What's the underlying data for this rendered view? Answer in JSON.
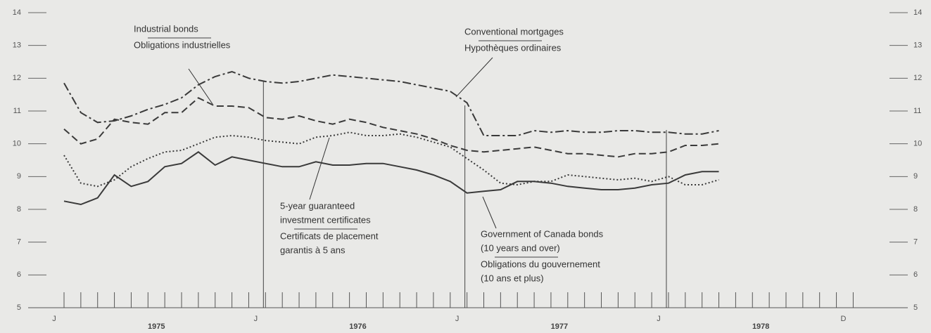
{
  "chart_data": {
    "type": "line",
    "categories": [
      "J",
      null,
      null,
      null,
      null,
      null,
      null,
      null,
      null,
      null,
      null,
      null,
      "J",
      null,
      null,
      null,
      null,
      null,
      null,
      null,
      null,
      null,
      null,
      null,
      "J",
      null,
      null,
      null,
      null,
      null,
      null,
      null,
      null,
      null,
      null,
      null,
      "J",
      null,
      null,
      null,
      null,
      null,
      null,
      null,
      null,
      null,
      null,
      "D"
    ],
    "year_labels": [
      "1975",
      "1976",
      "1977",
      "1978"
    ],
    "ylim": [
      5,
      14
    ],
    "yticks": [
      5,
      6,
      7,
      8,
      9,
      10,
      11,
      12,
      13,
      14
    ],
    "series": [
      {
        "color": "#3a3a3a",
        "dash": "dashdot",
        "values": [
          11.85,
          10.95,
          10.65,
          10.7,
          10.85,
          11.05,
          11.2,
          11.4,
          11.8,
          12.05,
          12.2,
          12.0,
          11.9,
          11.85,
          11.9,
          12.0,
          12.1,
          12.05,
          12.0,
          11.95,
          11.9,
          11.8,
          11.7,
          11.6,
          11.25,
          10.25,
          10.25,
          10.25,
          10.4,
          10.35,
          10.4,
          10.35,
          10.35,
          10.4,
          10.4,
          10.35,
          10.35,
          10.3,
          10.3,
          10.4,
          null,
          null,
          null,
          null,
          null,
          null,
          null,
          null
        ]
      },
      {
        "color": "#3a3a3a",
        "dash": "dashed",
        "values": [
          10.45,
          10.0,
          10.15,
          10.75,
          10.65,
          10.6,
          10.95,
          10.95,
          11.4,
          11.15,
          11.15,
          11.1,
          10.8,
          10.75,
          10.85,
          10.7,
          10.6,
          10.75,
          10.65,
          10.5,
          10.4,
          10.3,
          10.15,
          9.95,
          9.8,
          9.75,
          9.8,
          9.85,
          9.9,
          9.8,
          9.7,
          9.7,
          9.65,
          9.6,
          9.7,
          9.7,
          9.75,
          9.95,
          9.95,
          10.0,
          null,
          null,
          null,
          null,
          null,
          null,
          null,
          null
        ]
      },
      {
        "color": "#3a3a3a",
        "dash": "dotted",
        "values": [
          9.65,
          8.8,
          8.7,
          8.9,
          9.3,
          9.55,
          9.75,
          9.8,
          10.0,
          10.2,
          10.25,
          10.2,
          10.1,
          10.05,
          10.0,
          10.2,
          10.25,
          10.35,
          10.25,
          10.25,
          10.3,
          10.2,
          10.05,
          9.9,
          9.55,
          9.2,
          8.8,
          8.75,
          8.85,
          8.85,
          9.05,
          9.0,
          8.95,
          8.9,
          8.95,
          8.85,
          9.0,
          8.75,
          8.75,
          8.9,
          null,
          null,
          null,
          null,
          null,
          null,
          null,
          null
        ]
      },
      {
        "color": "#3a3a3a",
        "dash": "solid",
        "values": [
          8.25,
          8.15,
          8.35,
          9.05,
          8.7,
          8.85,
          9.3,
          9.4,
          9.75,
          9.35,
          9.6,
          9.5,
          9.4,
          9.3,
          9.3,
          9.45,
          9.35,
          9.35,
          9.4,
          9.4,
          9.3,
          9.2,
          9.05,
          8.85,
          8.5,
          8.55,
          8.6,
          8.85,
          8.85,
          8.8,
          8.7,
          8.65,
          8.6,
          8.6,
          8.65,
          8.75,
          8.8,
          9.05,
          9.15,
          9.15,
          null,
          null,
          null,
          null,
          null,
          null,
          null,
          null
        ]
      }
    ],
    "annotations": [
      {
        "lines": [
          "Conventional mortgages",
          "Hypothèques ordinaires"
        ]
      },
      {
        "lines": [
          "Industrial bonds",
          "Obligations industrielles"
        ]
      },
      {
        "lines": [
          "5-year guaranteed",
          "investment certificates",
          "Certificats de placement",
          "garantis à 5 ans"
        ]
      },
      {
        "lines": [
          "Government of Canada bonds",
          "(10 years and over)",
          "Obligations du gouvernement",
          "(10 ans et plus)"
        ]
      }
    ]
  }
}
